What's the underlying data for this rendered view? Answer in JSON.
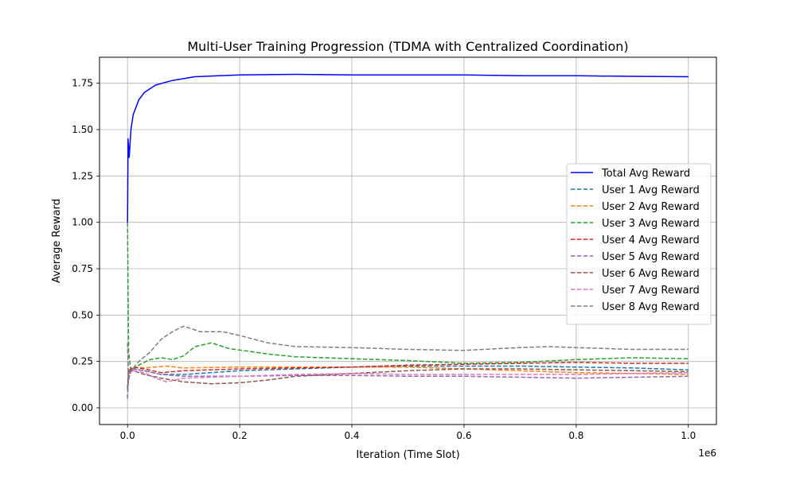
{
  "chart_data": {
    "type": "line",
    "title": "Multi-User Training Progression (TDMA with Centralized Coordination)",
    "xlabel": "Iteration (Time Slot)",
    "ylabel": "Average Reward",
    "x_offset_label": "1e6",
    "xlim": [
      -0.05,
      1.05
    ],
    "ylim": [
      -0.09,
      1.89
    ],
    "x_ticks": [
      0.0,
      0.2,
      0.4,
      0.6,
      0.8,
      1.0
    ],
    "x_tick_labels": [
      "0.0",
      "0.2",
      "0.4",
      "0.6",
      "0.8",
      "1.0"
    ],
    "y_ticks": [
      0.0,
      0.25,
      0.5,
      0.75,
      1.0,
      1.25,
      1.5,
      1.75
    ],
    "y_tick_labels": [
      "0.00",
      "0.25",
      "0.50",
      "0.75",
      "1.00",
      "1.25",
      "1.50",
      "1.75"
    ],
    "grid": true,
    "legend_position": "right",
    "series": [
      {
        "name": "Total Avg Reward",
        "color": "#0000ff",
        "style": "solid",
        "points": [
          [
            0.0,
            1.0
          ],
          [
            0.001,
            1.45
          ],
          [
            0.003,
            1.35
          ],
          [
            0.006,
            1.5
          ],
          [
            0.01,
            1.58
          ],
          [
            0.02,
            1.66
          ],
          [
            0.03,
            1.7
          ],
          [
            0.05,
            1.74
          ],
          [
            0.08,
            1.765
          ],
          [
            0.12,
            1.785
          ],
          [
            0.2,
            1.795
          ],
          [
            0.3,
            1.798
          ],
          [
            0.4,
            1.795
          ],
          [
            0.5,
            1.795
          ],
          [
            0.6,
            1.795
          ],
          [
            0.7,
            1.79
          ],
          [
            0.8,
            1.79
          ],
          [
            0.9,
            1.787
          ],
          [
            1.0,
            1.785
          ]
        ]
      },
      {
        "name": "User 1 Avg Reward",
        "color": "#1f77b4",
        "style": "dashed",
        "points": [
          [
            0.0,
            0.05
          ],
          [
            0.002,
            0.19
          ],
          [
            0.01,
            0.21
          ],
          [
            0.03,
            0.2
          ],
          [
            0.06,
            0.18
          ],
          [
            0.1,
            0.18
          ],
          [
            0.2,
            0.2
          ],
          [
            0.3,
            0.21
          ],
          [
            0.4,
            0.22
          ],
          [
            0.5,
            0.225
          ],
          [
            0.6,
            0.225
          ],
          [
            0.7,
            0.225
          ],
          [
            0.8,
            0.22
          ],
          [
            0.9,
            0.215
          ],
          [
            1.0,
            0.205
          ]
        ]
      },
      {
        "name": "User 2 Avg Reward",
        "color": "#ff7f0e",
        "style": "dashed",
        "points": [
          [
            0.0,
            0.1
          ],
          [
            0.002,
            0.2
          ],
          [
            0.01,
            0.22
          ],
          [
            0.03,
            0.215
          ],
          [
            0.07,
            0.225
          ],
          [
            0.1,
            0.215
          ],
          [
            0.2,
            0.22
          ],
          [
            0.3,
            0.22
          ],
          [
            0.4,
            0.22
          ],
          [
            0.5,
            0.22
          ],
          [
            0.6,
            0.21
          ],
          [
            0.7,
            0.2
          ],
          [
            0.8,
            0.19
          ],
          [
            0.9,
            0.185
          ],
          [
            1.0,
            0.18
          ]
        ]
      },
      {
        "name": "User 3 Avg Reward",
        "color": "#2ca02c",
        "style": "dashed",
        "points": [
          [
            0.0,
            1.0
          ],
          [
            0.002,
            0.3
          ],
          [
            0.006,
            0.2
          ],
          [
            0.02,
            0.23
          ],
          [
            0.04,
            0.26
          ],
          [
            0.06,
            0.27
          ],
          [
            0.08,
            0.26
          ],
          [
            0.1,
            0.28
          ],
          [
            0.12,
            0.33
          ],
          [
            0.15,
            0.35
          ],
          [
            0.18,
            0.32
          ],
          [
            0.25,
            0.29
          ],
          [
            0.3,
            0.275
          ],
          [
            0.4,
            0.265
          ],
          [
            0.5,
            0.255
          ],
          [
            0.6,
            0.24
          ],
          [
            0.7,
            0.245
          ],
          [
            0.8,
            0.26
          ],
          [
            0.9,
            0.27
          ],
          [
            1.0,
            0.265
          ]
        ]
      },
      {
        "name": "User 4 Avg Reward",
        "color": "#d62728",
        "style": "dashed",
        "points": [
          [
            0.0,
            0.1
          ],
          [
            0.002,
            0.2
          ],
          [
            0.01,
            0.22
          ],
          [
            0.03,
            0.21
          ],
          [
            0.06,
            0.19
          ],
          [
            0.1,
            0.2
          ],
          [
            0.2,
            0.21
          ],
          [
            0.3,
            0.215
          ],
          [
            0.4,
            0.22
          ],
          [
            0.5,
            0.23
          ],
          [
            0.6,
            0.235
          ],
          [
            0.7,
            0.24
          ],
          [
            0.8,
            0.245
          ],
          [
            0.9,
            0.24
          ],
          [
            1.0,
            0.24
          ]
        ]
      },
      {
        "name": "User 5 Avg Reward",
        "color": "#9467bd",
        "style": "dashed",
        "points": [
          [
            0.0,
            0.05
          ],
          [
            0.002,
            0.2
          ],
          [
            0.01,
            0.21
          ],
          [
            0.03,
            0.2
          ],
          [
            0.06,
            0.18
          ],
          [
            0.1,
            0.17
          ],
          [
            0.2,
            0.17
          ],
          [
            0.3,
            0.175
          ],
          [
            0.4,
            0.175
          ],
          [
            0.5,
            0.17
          ],
          [
            0.6,
            0.17
          ],
          [
            0.7,
            0.165
          ],
          [
            0.8,
            0.16
          ],
          [
            0.9,
            0.165
          ],
          [
            1.0,
            0.17
          ]
        ]
      },
      {
        "name": "User 6 Avg Reward",
        "color": "#8c564b",
        "style": "dashed",
        "points": [
          [
            0.0,
            0.1
          ],
          [
            0.002,
            0.2
          ],
          [
            0.01,
            0.2
          ],
          [
            0.03,
            0.18
          ],
          [
            0.06,
            0.16
          ],
          [
            0.1,
            0.14
          ],
          [
            0.15,
            0.13
          ],
          [
            0.2,
            0.135
          ],
          [
            0.25,
            0.15
          ],
          [
            0.3,
            0.17
          ],
          [
            0.4,
            0.185
          ],
          [
            0.5,
            0.2
          ],
          [
            0.6,
            0.21
          ],
          [
            0.7,
            0.21
          ],
          [
            0.8,
            0.205
          ],
          [
            0.9,
            0.2
          ],
          [
            1.0,
            0.195
          ]
        ]
      },
      {
        "name": "User 7 Avg Reward",
        "color": "#e377c2",
        "style": "dashed",
        "points": [
          [
            0.0,
            0.35
          ],
          [
            0.002,
            0.18
          ],
          [
            0.01,
            0.2
          ],
          [
            0.03,
            0.19
          ],
          [
            0.05,
            0.16
          ],
          [
            0.07,
            0.14
          ],
          [
            0.1,
            0.16
          ],
          [
            0.2,
            0.17
          ],
          [
            0.3,
            0.18
          ],
          [
            0.4,
            0.185
          ],
          [
            0.5,
            0.18
          ],
          [
            0.6,
            0.18
          ],
          [
            0.7,
            0.18
          ],
          [
            0.8,
            0.18
          ],
          [
            0.9,
            0.185
          ],
          [
            1.0,
            0.19
          ]
        ]
      },
      {
        "name": "User 8 Avg Reward",
        "color": "#7f7f7f",
        "style": "dashed",
        "points": [
          [
            0.0,
            0.35
          ],
          [
            0.002,
            0.15
          ],
          [
            0.006,
            0.2
          ],
          [
            0.02,
            0.25
          ],
          [
            0.04,
            0.3
          ],
          [
            0.06,
            0.37
          ],
          [
            0.08,
            0.41
          ],
          [
            0.1,
            0.44
          ],
          [
            0.13,
            0.41
          ],
          [
            0.17,
            0.41
          ],
          [
            0.2,
            0.39
          ],
          [
            0.25,
            0.35
          ],
          [
            0.3,
            0.33
          ],
          [
            0.4,
            0.325
          ],
          [
            0.5,
            0.315
          ],
          [
            0.6,
            0.31
          ],
          [
            0.7,
            0.325
          ],
          [
            0.75,
            0.33
          ],
          [
            0.8,
            0.325
          ],
          [
            0.9,
            0.315
          ],
          [
            1.0,
            0.315
          ]
        ]
      }
    ]
  }
}
